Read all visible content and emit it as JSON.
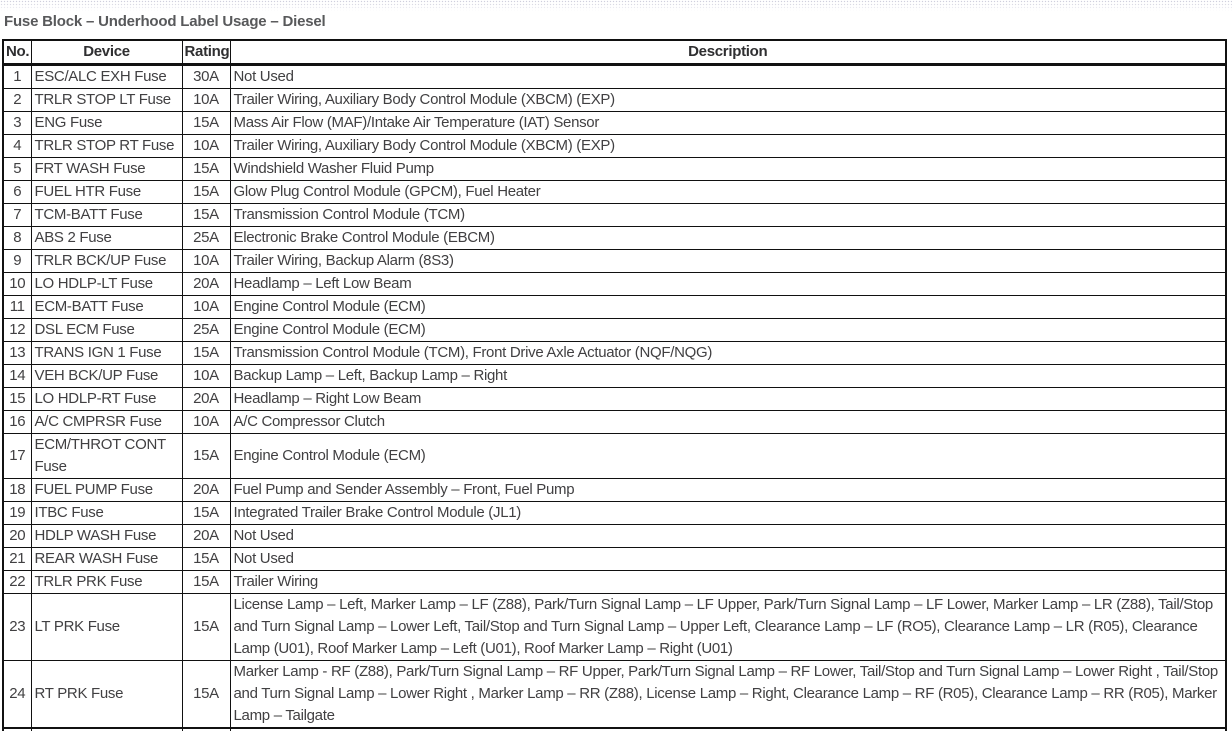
{
  "page": {
    "title": "Fuse Block – Underhood Label Usage – Diesel"
  },
  "colors": {
    "title_text": "#58595b",
    "body_text": "#414042",
    "header_text": "#2f2f31",
    "border": "#111111"
  },
  "table": {
    "headers": {
      "no": "No.",
      "device": "Device",
      "rating": "Rating",
      "description": "Description"
    },
    "rows": [
      {
        "no": "1",
        "device": "ESC/ALC EXH Fuse",
        "rating": "30A",
        "description": "Not Used"
      },
      {
        "no": "2",
        "device": "TRLR STOP LT Fuse",
        "rating": "10A",
        "description": "Trailer Wiring, Auxiliary Body Control Module (XBCM) (EXP)"
      },
      {
        "no": "3",
        "device": "ENG Fuse",
        "rating": "15A",
        "description": "Mass Air Flow (MAF)/Intake Air Temperature (IAT) Sensor"
      },
      {
        "no": "4",
        "device": "TRLR STOP RT Fuse",
        "rating": "10A",
        "description": "Trailer Wiring, Auxiliary Body Control Module (XBCM) (EXP)"
      },
      {
        "no": "5",
        "device": "FRT WASH Fuse",
        "rating": "15A",
        "description": "Windshield Washer Fluid Pump"
      },
      {
        "no": "6",
        "device": "FUEL HTR Fuse",
        "rating": "15A",
        "description": "Glow Plug Control Module (GPCM), Fuel Heater"
      },
      {
        "no": "7",
        "device": "TCM-BATT Fuse",
        "rating": "15A",
        "description": "Transmission Control Module (TCM)"
      },
      {
        "no": "8",
        "device": "ABS 2 Fuse",
        "rating": "25A",
        "description": "Electronic Brake Control Module (EBCM)"
      },
      {
        "no": "9",
        "device": "TRLR BCK/UP Fuse",
        "rating": "10A",
        "description": "Trailer Wiring, Backup Alarm (8S3)"
      },
      {
        "no": "10",
        "device": "LO HDLP-LT Fuse",
        "rating": "20A",
        "description": "Headlamp – Left Low Beam"
      },
      {
        "no": "11",
        "device": "ECM-BATT Fuse",
        "rating": "10A",
        "description": "Engine Control Module (ECM)"
      },
      {
        "no": "12",
        "device": "DSL ECM Fuse",
        "rating": "25A",
        "description": "Engine Control Module (ECM)"
      },
      {
        "no": "13",
        "device": "TRANS IGN 1 Fuse",
        "rating": "15A",
        "description": "Transmission Control Module (TCM), Front Drive Axle Actuator (NQF/NQG)"
      },
      {
        "no": "14",
        "device": "VEH BCK/UP Fuse",
        "rating": "10A",
        "description": "Backup Lamp – Left, Backup Lamp – Right"
      },
      {
        "no": "15",
        "device": "LO HDLP-RT Fuse",
        "rating": "20A",
        "description": "Headlamp – Right Low Beam"
      },
      {
        "no": "16",
        "device": "A/C CMPRSR Fuse",
        "rating": "10A",
        "description": "A/C Compressor Clutch"
      },
      {
        "no": "17",
        "device": "ECM/THROT CONT Fuse",
        "rating": "15A",
        "description": "Engine Control Module (ECM)"
      },
      {
        "no": "18",
        "device": "FUEL PUMP Fuse",
        "rating": "20A",
        "description": "Fuel Pump and Sender Assembly – Front, Fuel Pump"
      },
      {
        "no": "19",
        "device": "ITBC Fuse",
        "rating": "15A",
        "description": "Integrated Trailer Brake Control Module (JL1)"
      },
      {
        "no": "20",
        "device": "HDLP WASH Fuse",
        "rating": "20A",
        "description": "Not Used"
      },
      {
        "no": "21",
        "device": "REAR WASH Fuse",
        "rating": "15A",
        "description": "Not Used"
      },
      {
        "no": "22",
        "device": "TRLR PRK Fuse",
        "rating": "15A",
        "description": "Trailer Wiring"
      },
      {
        "no": "23",
        "device": "LT PRK Fuse",
        "rating": "15A",
        "description": "License Lamp – Left, Marker Lamp – LF (Z88), Park/Turn Signal Lamp – LF Upper, Park/Turn Signal Lamp – LF Lower, Marker Lamp – LR (Z88), Tail/Stop and Turn Signal Lamp – Lower Left, Tail/Stop and Turn Signal Lamp – Upper Left, Clearance Lamp – LF (RO5), Clearance Lamp – LR (R05), Clearance Lamp (U01), Roof Marker Lamp – Left (U01), Roof Marker Lamp – Right (U01)"
      },
      {
        "no": "24",
        "device": "RT PRK Fuse",
        "rating": "15A",
        "description": "Marker Lamp - RF (Z88), Park/Turn Signal Lamp – RF Upper, Park/Turn Signal Lamp – RF Lower, Tail/Stop and Turn Signal Lamp – Lower Right , Tail/Stop and Turn Signal Lamp – Lower Right , Marker Lamp – RR (Z88), License Lamp – Right, Clearance Lamp – RF (R05), Clearance Lamp – RR (R05), Marker Lamp – Tailgate"
      }
    ]
  }
}
